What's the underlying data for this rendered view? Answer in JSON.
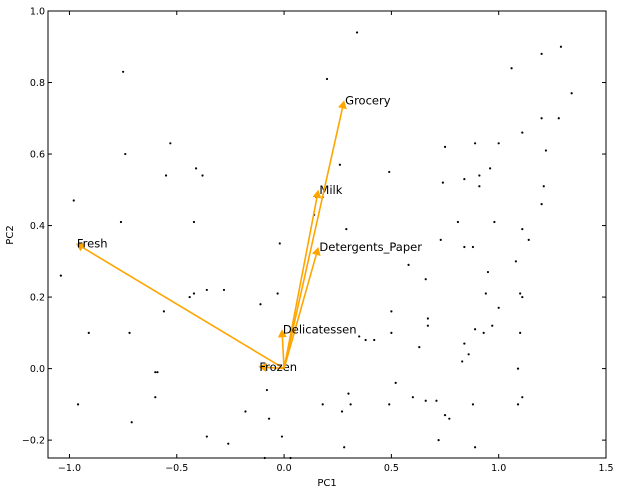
{
  "chart_data": {
    "type": "scatter",
    "xlabel": "PC1",
    "ylabel": "PC2",
    "xlim": [
      -1.1,
      1.5
    ],
    "ylim": [
      -0.25,
      1.0
    ],
    "xticks": [
      -1.0,
      -0.5,
      0.0,
      0.5,
      1.0,
      1.5
    ],
    "xtick_labels": [
      "−1.0",
      "−0.5",
      "0.0",
      "0.5",
      "1.0",
      "1.5"
    ],
    "yticks": [
      -0.2,
      0.0,
      0.2,
      0.4,
      0.6,
      0.8,
      1.0
    ],
    "ytick_labels": [
      "−0.2",
      "0.0",
      "0.2",
      "0.4",
      "0.6",
      "0.8",
      "1.0"
    ],
    "grid": false,
    "point_color": "#000000",
    "arrow_color": "#FFA500",
    "points": [
      {
        "x": 0.34,
        "y": 0.94
      },
      {
        "x": -0.75,
        "y": 0.83
      },
      {
        "x": 0.2,
        "y": 0.81
      },
      {
        "x": 1.29,
        "y": 0.9
      },
      {
        "x": 1.2,
        "y": 0.88
      },
      {
        "x": 1.06,
        "y": 0.84
      },
      {
        "x": 1.34,
        "y": 0.77
      },
      {
        "x": 1.11,
        "y": 0.66
      },
      {
        "x": 1.2,
        "y": 0.7
      },
      {
        "x": 1.28,
        "y": 0.7
      },
      {
        "x": -0.53,
        "y": 0.63
      },
      {
        "x": -0.74,
        "y": 0.6
      },
      {
        "x": 0.89,
        "y": 0.63
      },
      {
        "x": 1.0,
        "y": 0.63
      },
      {
        "x": 0.75,
        "y": 0.62
      },
      {
        "x": 1.22,
        "y": 0.61
      },
      {
        "x": 0.26,
        "y": 0.57
      },
      {
        "x": 0.49,
        "y": 0.55
      },
      {
        "x": -0.41,
        "y": 0.56
      },
      {
        "x": -0.38,
        "y": 0.54
      },
      {
        "x": -0.55,
        "y": 0.54
      },
      {
        "x": 0.91,
        "y": 0.54
      },
      {
        "x": 0.84,
        "y": 0.53
      },
      {
        "x": 0.96,
        "y": 0.56
      },
      {
        "x": 1.21,
        "y": 0.51
      },
      {
        "x": 0.74,
        "y": 0.52
      },
      {
        "x": 0.91,
        "y": 0.51
      },
      {
        "x": 1.2,
        "y": 0.46
      },
      {
        "x": -0.98,
        "y": 0.47
      },
      {
        "x": 0.18,
        "y": 0.48
      },
      {
        "x": 0.15,
        "y": 0.48
      },
      {
        "x": 0.14,
        "y": 0.43
      },
      {
        "x": -0.76,
        "y": 0.41
      },
      {
        "x": -0.42,
        "y": 0.41
      },
      {
        "x": 0.81,
        "y": 0.41
      },
      {
        "x": 0.98,
        "y": 0.41
      },
      {
        "x": 0.29,
        "y": 0.39
      },
      {
        "x": 1.11,
        "y": 0.39
      },
      {
        "x": 0.73,
        "y": 0.36
      },
      {
        "x": 1.14,
        "y": 0.36
      },
      {
        "x": -0.02,
        "y": 0.35
      },
      {
        "x": 0.88,
        "y": 0.34
      },
      {
        "x": 0.84,
        "y": 0.34
      },
      {
        "x": 1.08,
        "y": 0.3
      },
      {
        "x": 0.58,
        "y": 0.29
      },
      {
        "x": 0.66,
        "y": 0.25
      },
      {
        "x": 0.95,
        "y": 0.27
      },
      {
        "x": -1.04,
        "y": 0.26
      },
      {
        "x": -0.28,
        "y": 0.22
      },
      {
        "x": -0.44,
        "y": 0.2
      },
      {
        "x": -0.42,
        "y": 0.21
      },
      {
        "x": -0.36,
        "y": 0.22
      },
      {
        "x": -0.03,
        "y": 0.21
      },
      {
        "x": 0.94,
        "y": 0.21
      },
      {
        "x": 1.1,
        "y": 0.21
      },
      {
        "x": 1.11,
        "y": 0.2
      },
      {
        "x": -0.11,
        "y": 0.18
      },
      {
        "x": -0.56,
        "y": 0.16
      },
      {
        "x": 0.5,
        "y": 0.16
      },
      {
        "x": 1.0,
        "y": 0.17
      },
      {
        "x": 0.67,
        "y": 0.14
      },
      {
        "x": 0.67,
        "y": 0.12
      },
      {
        "x": 0.89,
        "y": 0.11
      },
      {
        "x": 0.97,
        "y": 0.12
      },
      {
        "x": -0.91,
        "y": 0.1
      },
      {
        "x": -0.72,
        "y": 0.1
      },
      {
        "x": 0.5,
        "y": 0.1
      },
      {
        "x": 0.93,
        "y": 0.1
      },
      {
        "x": 1.1,
        "y": 0.1
      },
      {
        "x": 0.35,
        "y": 0.09
      },
      {
        "x": 0.42,
        "y": 0.08
      },
      {
        "x": 0.38,
        "y": 0.08
      },
      {
        "x": 0.84,
        "y": 0.07
      },
      {
        "x": 0.63,
        "y": 0.06
      },
      {
        "x": 0.86,
        "y": 0.04
      },
      {
        "x": 0.83,
        "y": 0.02
      },
      {
        "x": -0.6,
        "y": -0.01
      },
      {
        "x": -0.59,
        "y": -0.01
      },
      {
        "x": 1.09,
        "y": 0.0
      },
      {
        "x": 0.52,
        "y": -0.04
      },
      {
        "x": 0.3,
        "y": -0.07
      },
      {
        "x": 0.6,
        "y": -0.08
      },
      {
        "x": 0.18,
        "y": -0.1
      },
      {
        "x": 0.31,
        "y": -0.1
      },
      {
        "x": -0.6,
        "y": -0.08
      },
      {
        "x": 0.66,
        "y": -0.09
      },
      {
        "x": 0.49,
        "y": -0.1
      },
      {
        "x": 0.71,
        "y": -0.09
      },
      {
        "x": 0.88,
        "y": -0.1
      },
      {
        "x": 1.11,
        "y": -0.08
      },
      {
        "x": -0.96,
        "y": -0.1
      },
      {
        "x": -0.08,
        "y": -0.06
      },
      {
        "x": -0.07,
        "y": -0.14
      },
      {
        "x": 0.27,
        "y": -0.12
      },
      {
        "x": 0.75,
        "y": -0.13
      },
      {
        "x": 0.77,
        "y": -0.14
      },
      {
        "x": 1.09,
        "y": -0.1
      },
      {
        "x": -0.71,
        "y": -0.15
      },
      {
        "x": -0.18,
        "y": -0.12
      },
      {
        "x": -0.36,
        "y": -0.19
      },
      {
        "x": -0.01,
        "y": -0.19
      },
      {
        "x": -0.26,
        "y": -0.21
      },
      {
        "x": 0.28,
        "y": -0.22
      },
      {
        "x": 0.72,
        "y": -0.2
      },
      {
        "x": 0.89,
        "y": -0.22
      },
      {
        "x": -0.09,
        "y": -0.25
      },
      {
        "x": 0.03,
        "y": -0.25
      }
    ],
    "vectors": [
      {
        "name": "Fresh",
        "x": -0.97,
        "y": 0.35
      },
      {
        "name": "Milk",
        "x": 0.16,
        "y": 0.5
      },
      {
        "name": "Grocery",
        "x": 0.28,
        "y": 0.75
      },
      {
        "name": "Frozen",
        "x": -0.12,
        "y": 0.005
      },
      {
        "name": "Detergents_Paper",
        "x": 0.16,
        "y": 0.34
      },
      {
        "name": "Delicatessen",
        "x": -0.01,
        "y": 0.11
      }
    ]
  }
}
